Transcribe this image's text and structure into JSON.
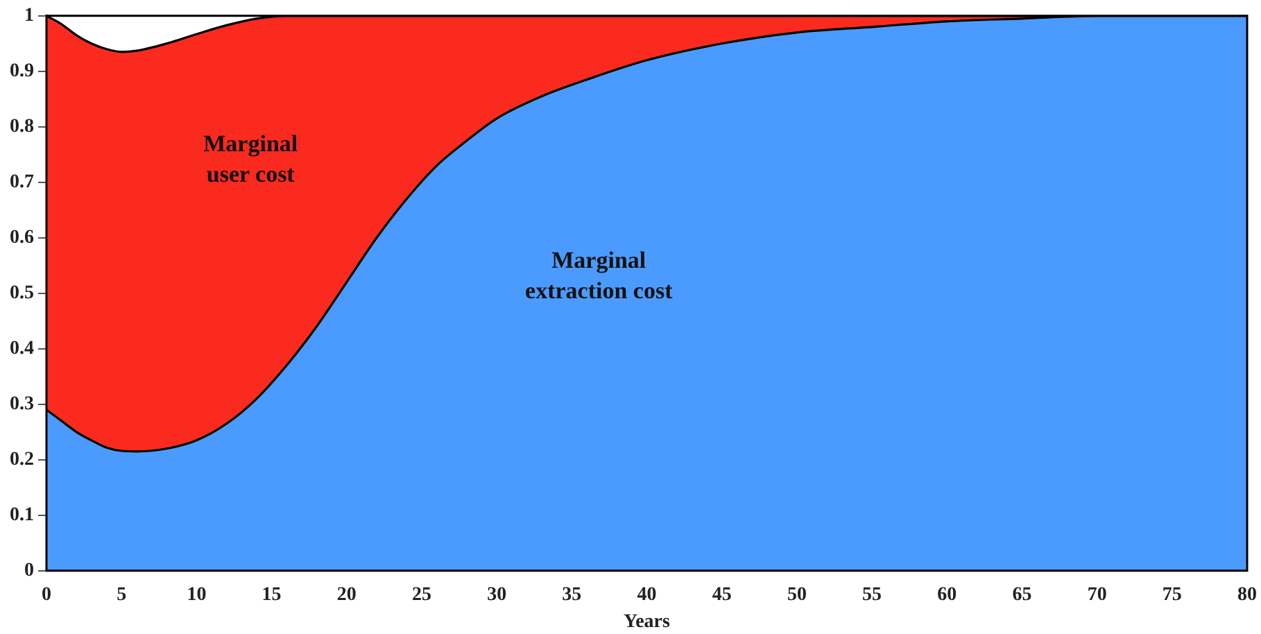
{
  "chart_data": {
    "type": "area",
    "stacked": true,
    "xlabel": "Years",
    "x": [
      0,
      1,
      2,
      3,
      4,
      5,
      6,
      8,
      10,
      12,
      14,
      16,
      18,
      20,
      22,
      24,
      26,
      28,
      30,
      33,
      36,
      40,
      45,
      50,
      55,
      60,
      65,
      70,
      75,
      80
    ],
    "series": [
      {
        "name": "Marginal extraction cost",
        "color": "#4b9bff",
        "values": [
          0.29,
          0.27,
          0.25,
          0.235,
          0.222,
          0.216,
          0.215,
          0.22,
          0.235,
          0.265,
          0.31,
          0.37,
          0.44,
          0.52,
          0.6,
          0.67,
          0.73,
          0.775,
          0.815,
          0.855,
          0.885,
          0.92,
          0.95,
          0.97,
          0.98,
          0.99,
          0.995,
          1,
          1,
          1
        ]
      },
      {
        "name": "Marginal user cost",
        "color": "#fb2a1e",
        "values": [
          0.71,
          0.715,
          0.715,
          0.715,
          0.718,
          0.719,
          0.722,
          0.73,
          0.732,
          0.718,
          0.685,
          0.63,
          0.56,
          0.48,
          0.4,
          0.33,
          0.27,
          0.225,
          0.185,
          0.145,
          0.115,
          0.08,
          0.05,
          0.03,
          0.02,
          0.01,
          0.005,
          0,
          0,
          0
        ]
      }
    ],
    "xlim": [
      0,
      80
    ],
    "xticks": [
      0,
      5,
      10,
      15,
      20,
      25,
      30,
      35,
      40,
      45,
      50,
      55,
      60,
      65,
      70,
      75,
      80
    ],
    "ylim": [
      0,
      1
    ],
    "yticks": [
      0,
      0.1,
      0.2,
      0.3,
      0.4,
      0.5,
      0.6,
      0.7,
      0.8,
      0.9,
      1
    ],
    "grid": false,
    "legend": false
  }
}
